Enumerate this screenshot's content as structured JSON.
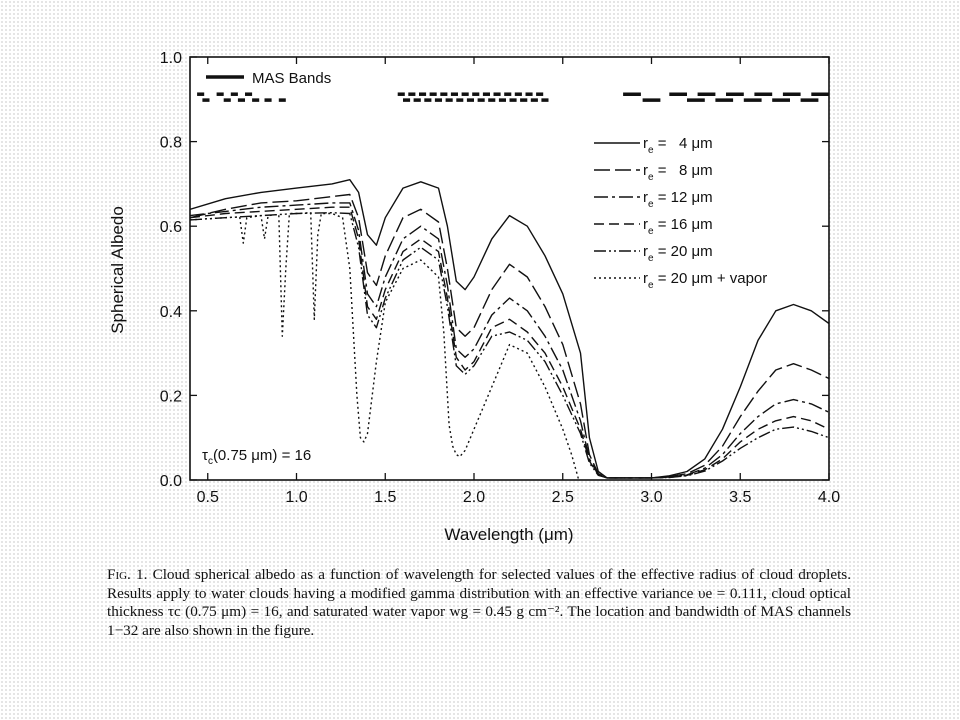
{
  "colors": {
    "ink": "#111111",
    "background": "#ffffff"
  },
  "chart_data": {
    "type": "line",
    "xlabel": "Wavelength (μm)",
    "ylabel": "Spherical Albedo",
    "xlim": [
      0.4,
      4.0
    ],
    "ylim": [
      0.0,
      1.0
    ],
    "x_ticks": [
      0.5,
      1.0,
      1.5,
      2.0,
      2.5,
      3.0,
      3.5,
      4.0
    ],
    "x_tick_labels": [
      "0.5",
      "1.0",
      "1.5",
      "2.0",
      "2.5",
      "3.0",
      "3.5",
      "4.0"
    ],
    "y_ticks": [
      0.0,
      0.2,
      0.4,
      0.6,
      0.8,
      1.0
    ],
    "y_tick_labels": [
      "0.0",
      "0.2",
      "0.4",
      "0.6",
      "0.8",
      "1.0"
    ],
    "grid": false,
    "legend_position": "right",
    "annotation": {
      "tau_text": "(0.75 μm) = 16",
      "tau_symbol": "τ",
      "tau_sub": "c"
    },
    "mas_bands": {
      "label": "MAS Bands",
      "rows": [
        {
          "y": 0.912,
          "ranges": [
            [
              0.44,
              0.48
            ],
            [
              0.55,
              0.59
            ],
            [
              0.63,
              0.67
            ],
            [
              0.71,
              0.75
            ],
            [
              1.57,
              1.61
            ],
            [
              1.63,
              1.67
            ],
            [
              1.69,
              1.73
            ],
            [
              1.75,
              1.79
            ],
            [
              1.81,
              1.85
            ],
            [
              1.87,
              1.91
            ],
            [
              1.93,
              1.97
            ],
            [
              1.99,
              2.03
            ],
            [
              2.05,
              2.09
            ],
            [
              2.11,
              2.15
            ],
            [
              2.17,
              2.21
            ],
            [
              2.23,
              2.27
            ],
            [
              2.29,
              2.33
            ],
            [
              2.35,
              2.39
            ],
            [
              2.84,
              2.94
            ],
            [
              3.1,
              3.2
            ],
            [
              3.26,
              3.36
            ],
            [
              3.42,
              3.52
            ],
            [
              3.58,
              3.68
            ],
            [
              3.74,
              3.84
            ],
            [
              3.9,
              4.0
            ]
          ]
        },
        {
          "y": 0.898,
          "ranges": [
            [
              0.47,
              0.51
            ],
            [
              0.59,
              0.63
            ],
            [
              0.67,
              0.71
            ],
            [
              0.75,
              0.79
            ],
            [
              0.82,
              0.86
            ],
            [
              0.9,
              0.94
            ],
            [
              1.6,
              1.64
            ],
            [
              1.66,
              1.7
            ],
            [
              1.72,
              1.76
            ],
            [
              1.78,
              1.82
            ],
            [
              1.84,
              1.88
            ],
            [
              1.9,
              1.94
            ],
            [
              1.96,
              2.0
            ],
            [
              2.02,
              2.06
            ],
            [
              2.08,
              2.12
            ],
            [
              2.14,
              2.18
            ],
            [
              2.2,
              2.24
            ],
            [
              2.26,
              2.3
            ],
            [
              2.32,
              2.36
            ],
            [
              2.38,
              2.42
            ],
            [
              2.95,
              3.05
            ],
            [
              3.2,
              3.3
            ],
            [
              3.36,
              3.46
            ],
            [
              3.52,
              3.62
            ],
            [
              3.68,
              3.78
            ],
            [
              3.84,
              3.94
            ]
          ]
        }
      ]
    },
    "series": [
      {
        "name": "4 μm",
        "re": "4",
        "suffix": "",
        "dash": "",
        "x": [
          0.4,
          0.6,
          0.8,
          1.0,
          1.2,
          1.3,
          1.35,
          1.4,
          1.45,
          1.5,
          1.6,
          1.7,
          1.8,
          1.85,
          1.9,
          1.95,
          2.0,
          2.1,
          2.2,
          2.3,
          2.4,
          2.5,
          2.6,
          2.65,
          2.7,
          2.75,
          2.8,
          2.9,
          3.0,
          3.1,
          3.2,
          3.3,
          3.4,
          3.5,
          3.6,
          3.7,
          3.8,
          3.9,
          4.0
        ],
        "y": [
          0.64,
          0.665,
          0.68,
          0.69,
          0.7,
          0.71,
          0.68,
          0.58,
          0.555,
          0.62,
          0.69,
          0.705,
          0.69,
          0.6,
          0.47,
          0.45,
          0.48,
          0.57,
          0.625,
          0.6,
          0.53,
          0.44,
          0.3,
          0.1,
          0.02,
          0.005,
          0.005,
          0.005,
          0.005,
          0.01,
          0.02,
          0.05,
          0.12,
          0.22,
          0.33,
          0.4,
          0.415,
          0.4,
          0.37
        ]
      },
      {
        "name": "8 μm",
        "re": "8",
        "suffix": "",
        "dash": "16 5",
        "x": [
          0.4,
          0.6,
          0.8,
          1.0,
          1.2,
          1.3,
          1.35,
          1.4,
          1.45,
          1.5,
          1.6,
          1.7,
          1.8,
          1.85,
          1.9,
          1.95,
          2.0,
          2.1,
          2.2,
          2.3,
          2.4,
          2.5,
          2.6,
          2.65,
          2.7,
          2.75,
          2.8,
          2.9,
          3.0,
          3.1,
          3.2,
          3.3,
          3.4,
          3.5,
          3.6,
          3.7,
          3.8,
          3.9,
          4.0
        ],
        "y": [
          0.62,
          0.64,
          0.655,
          0.66,
          0.67,
          0.675,
          0.62,
          0.49,
          0.46,
          0.53,
          0.62,
          0.64,
          0.61,
          0.5,
          0.36,
          0.34,
          0.36,
          0.45,
          0.51,
          0.48,
          0.41,
          0.32,
          0.18,
          0.06,
          0.015,
          0.005,
          0.005,
          0.005,
          0.005,
          0.008,
          0.015,
          0.035,
          0.08,
          0.15,
          0.21,
          0.26,
          0.275,
          0.26,
          0.24
        ]
      },
      {
        "name": "12 μm",
        "re": "12",
        "suffix": "",
        "dash": "14 4 3 4",
        "x": [
          0.4,
          0.6,
          0.8,
          1.0,
          1.2,
          1.3,
          1.35,
          1.4,
          1.45,
          1.5,
          1.6,
          1.7,
          1.8,
          1.85,
          1.9,
          1.95,
          2.0,
          2.1,
          2.2,
          2.3,
          2.4,
          2.5,
          2.6,
          2.65,
          2.7,
          2.75,
          2.8,
          2.9,
          3.0,
          3.1,
          3.2,
          3.3,
          3.4,
          3.5,
          3.6,
          3.7,
          3.8,
          3.9,
          4.0
        ],
        "y": [
          0.625,
          0.635,
          0.645,
          0.65,
          0.655,
          0.655,
          0.59,
          0.44,
          0.41,
          0.48,
          0.57,
          0.6,
          0.57,
          0.46,
          0.31,
          0.29,
          0.31,
          0.39,
          0.43,
          0.4,
          0.34,
          0.26,
          0.14,
          0.05,
          0.012,
          0.005,
          0.005,
          0.005,
          0.005,
          0.007,
          0.012,
          0.028,
          0.06,
          0.11,
          0.15,
          0.18,
          0.19,
          0.18,
          0.16
        ]
      },
      {
        "name": "16 μm",
        "re": "16",
        "suffix": "",
        "dash": "10 5",
        "x": [
          0.4,
          0.6,
          0.8,
          1.0,
          1.2,
          1.3,
          1.35,
          1.4,
          1.45,
          1.5,
          1.6,
          1.7,
          1.8,
          1.85,
          1.9,
          1.95,
          2.0,
          2.1,
          2.2,
          2.3,
          2.4,
          2.5,
          2.6,
          2.65,
          2.7,
          2.75,
          2.8,
          2.9,
          3.0,
          3.1,
          3.2,
          3.3,
          3.4,
          3.5,
          3.6,
          3.7,
          3.8,
          3.9,
          4.0
        ],
        "y": [
          0.62,
          0.63,
          0.635,
          0.64,
          0.645,
          0.645,
          0.57,
          0.41,
          0.38,
          0.45,
          0.54,
          0.57,
          0.54,
          0.43,
          0.29,
          0.26,
          0.28,
          0.36,
          0.38,
          0.35,
          0.3,
          0.22,
          0.12,
          0.045,
          0.012,
          0.005,
          0.005,
          0.005,
          0.005,
          0.006,
          0.011,
          0.024,
          0.05,
          0.09,
          0.12,
          0.14,
          0.15,
          0.14,
          0.12
        ]
      },
      {
        "name": "20 μm",
        "re": "20",
        "suffix": "",
        "dash": "12 3 2 3 2 3",
        "x": [
          0.4,
          0.6,
          0.8,
          1.0,
          1.2,
          1.3,
          1.35,
          1.4,
          1.45,
          1.5,
          1.6,
          1.7,
          1.8,
          1.85,
          1.9,
          1.95,
          2.0,
          2.1,
          2.2,
          2.3,
          2.4,
          2.5,
          2.6,
          2.65,
          2.7,
          2.75,
          2.8,
          2.9,
          3.0,
          3.1,
          3.2,
          3.3,
          3.4,
          3.5,
          3.6,
          3.7,
          3.8,
          3.9,
          4.0
        ],
        "y": [
          0.615,
          0.62,
          0.625,
          0.63,
          0.632,
          0.63,
          0.55,
          0.39,
          0.36,
          0.43,
          0.52,
          0.55,
          0.52,
          0.41,
          0.27,
          0.25,
          0.27,
          0.34,
          0.35,
          0.33,
          0.28,
          0.2,
          0.11,
          0.04,
          0.011,
          0.005,
          0.005,
          0.005,
          0.005,
          0.006,
          0.01,
          0.021,
          0.045,
          0.075,
          0.1,
          0.12,
          0.125,
          0.115,
          0.1
        ]
      },
      {
        "name": "20 μm + vapor",
        "re": "20",
        "suffix": "+ vapor",
        "dash": "2 3",
        "x": [
          0.4,
          0.6,
          0.68,
          0.7,
          0.72,
          0.8,
          0.82,
          0.84,
          0.9,
          0.92,
          0.94,
          0.96,
          1.0,
          1.08,
          1.1,
          1.12,
          1.14,
          1.2,
          1.26,
          1.3,
          1.34,
          1.36,
          1.38,
          1.4,
          1.45,
          1.5,
          1.6,
          1.7,
          1.8,
          1.83,
          1.86,
          1.88,
          1.9,
          1.92,
          1.95,
          2.0,
          2.1,
          2.2,
          2.3,
          2.4,
          2.5,
          2.55,
          2.57,
          2.58,
          2.59
        ],
        "y": [
          0.615,
          0.62,
          0.622,
          0.56,
          0.62,
          0.625,
          0.57,
          0.625,
          0.628,
          0.34,
          0.5,
          0.63,
          0.63,
          0.632,
          0.38,
          0.58,
          0.63,
          0.63,
          0.62,
          0.5,
          0.2,
          0.1,
          0.09,
          0.11,
          0.28,
          0.42,
          0.5,
          0.52,
          0.48,
          0.35,
          0.13,
          0.08,
          0.06,
          0.055,
          0.07,
          0.12,
          0.22,
          0.32,
          0.3,
          0.22,
          0.12,
          0.06,
          0.03,
          0.015,
          0.0
        ]
      }
    ]
  },
  "caption": {
    "fig_label": "Fig. 1.",
    "text": "Cloud spherical albedo as a function of wavelength for selected values of the effective radius of cloud droplets. Results apply to water clouds having a modified gamma distribution with an effective variance υe = 0.111, cloud optical thickness τc (0.75 μm) = 16, and saturated water vapor wg = 0.45 g cm⁻². The location and bandwidth of MAS channels 1−32 are also shown in the figure."
  }
}
